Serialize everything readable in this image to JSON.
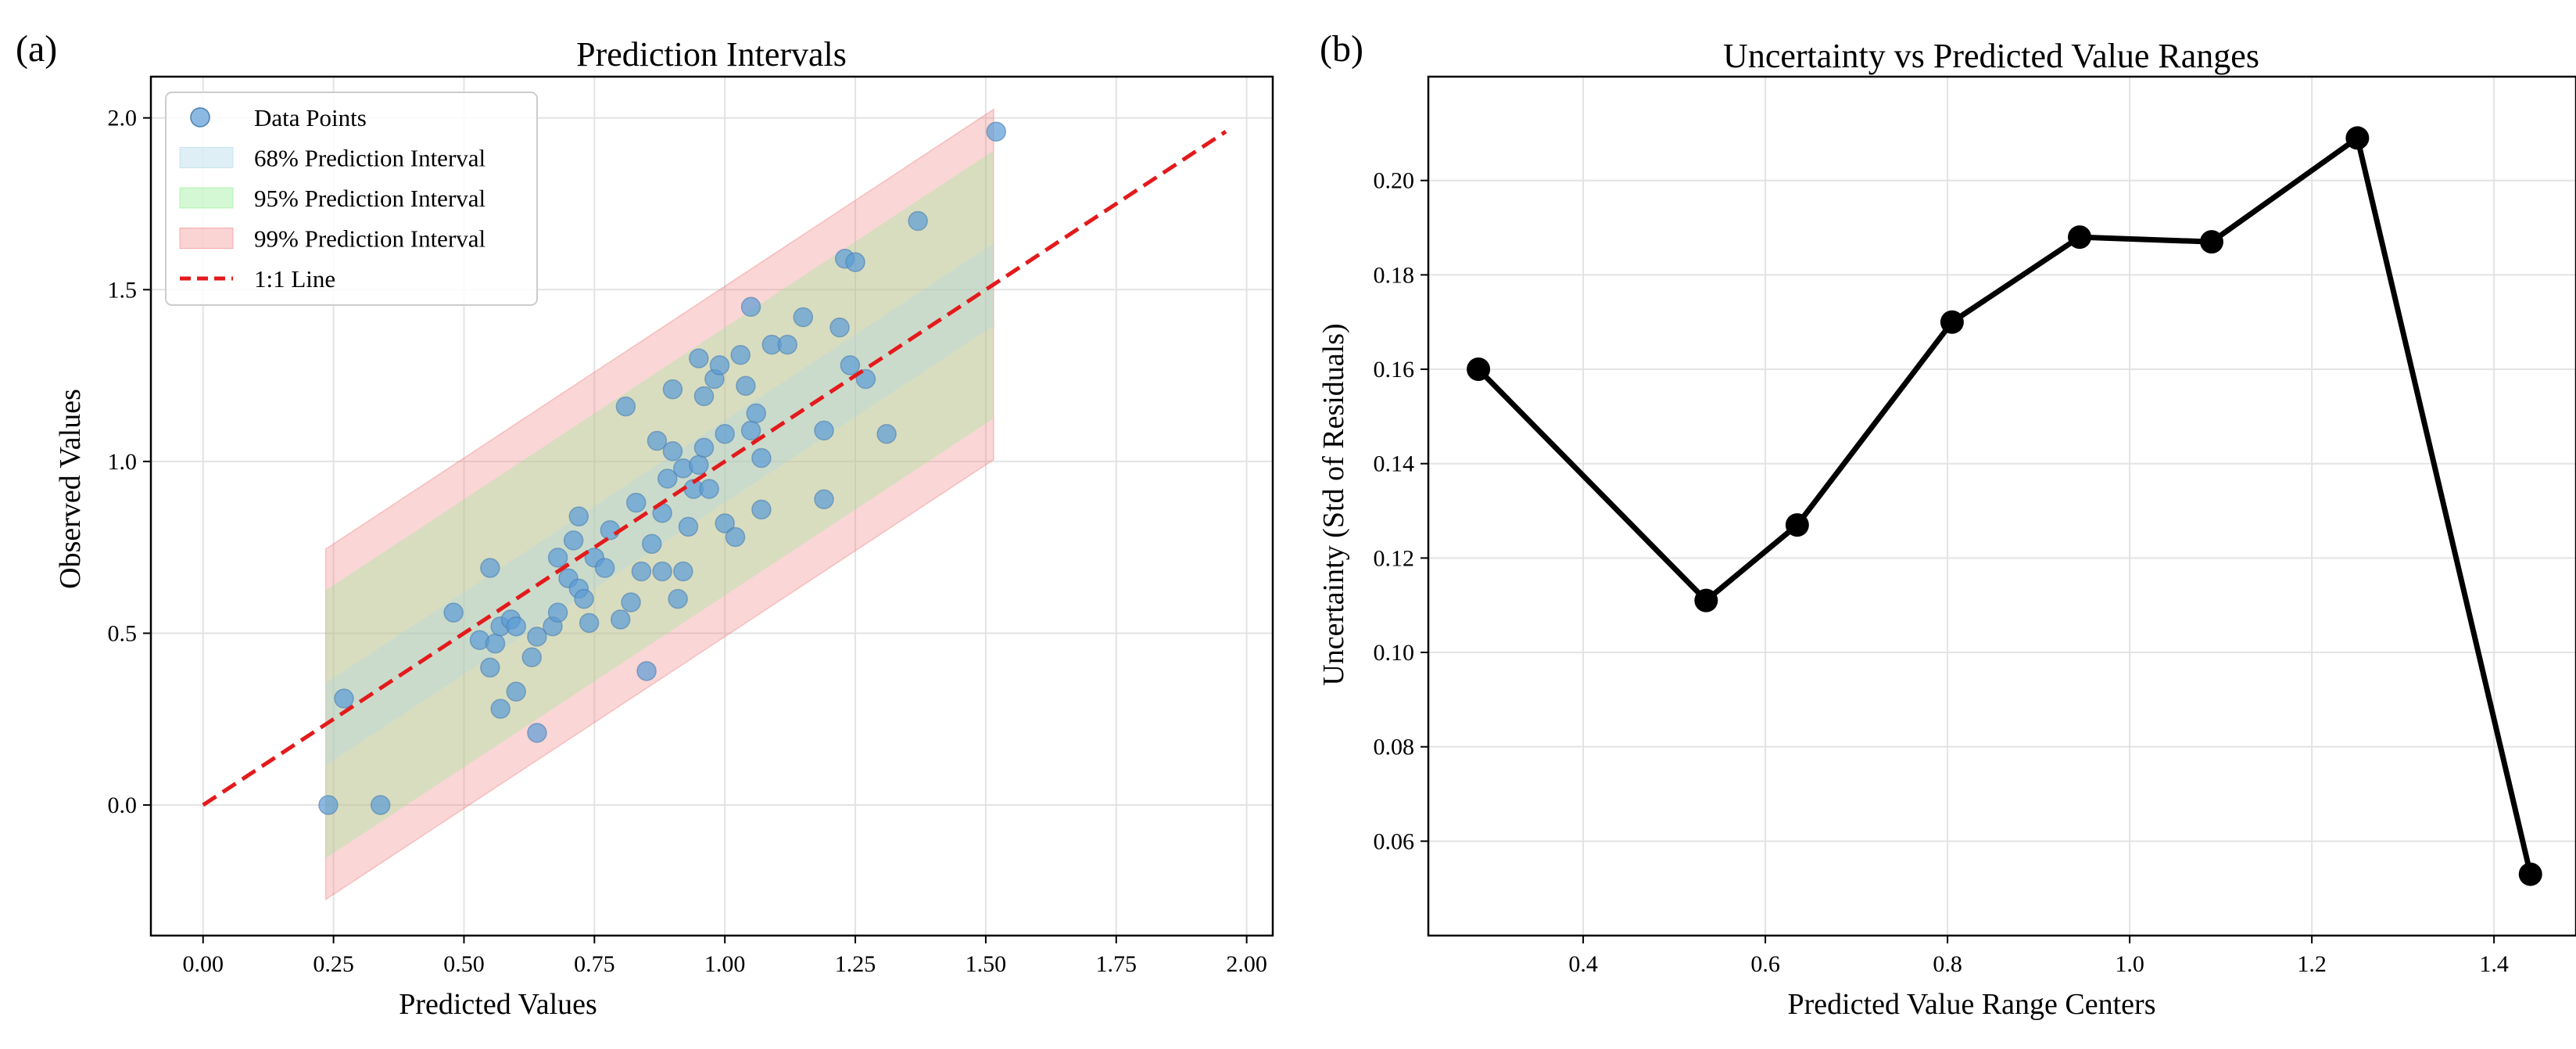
{
  "chart_data": [
    {
      "type": "scatter",
      "panel_label": "(a)",
      "title": "Prediction Intervals",
      "xlabel": "Predicted Values",
      "ylabel": "Observed Values",
      "xlim": [
        -0.1,
        2.05
      ],
      "ylim": [
        -0.38,
        2.12
      ],
      "xticks": [
        0.0,
        0.25,
        0.5,
        0.75,
        1.0,
        1.25,
        1.5,
        1.75,
        2.0
      ],
      "xtick_labels": [
        "0.00",
        "0.25",
        "0.50",
        "0.75",
        "1.00",
        "1.25",
        "1.50",
        "1.75",
        "2.00"
      ],
      "yticks": [
        0.0,
        0.5,
        1.0,
        1.5,
        2.0
      ],
      "ytick_labels": [
        "0.0",
        "0.5",
        "1.0",
        "1.5",
        "2.0"
      ],
      "grid": true,
      "legend_position": "top-left",
      "legend": [
        "Data Points",
        "68% Prediction Interval",
        "95% Prediction Interval",
        "99% Prediction Interval",
        "1:1 Line"
      ],
      "colors": {
        "points": "#5b9bd5",
        "interval_68": "#add8e6",
        "interval_95": "#90ee90",
        "interval_99": "#f08080",
        "line_1to1": "#e31a1c"
      },
      "intervals": {
        "x_range": [
          0.235,
          1.515
        ],
        "half_width_68": 0.12,
        "half_width_95": 0.39,
        "half_width_99": 0.51
      },
      "line_1to1": {
        "x": [
          0.0,
          1.96
        ],
        "y": [
          0.0,
          1.96
        ]
      },
      "points": [
        {
          "x": 0.24,
          "y": 0.0
        },
        {
          "x": 0.27,
          "y": 0.31
        },
        {
          "x": 0.34,
          "y": 0.0
        },
        {
          "x": 0.48,
          "y": 0.56
        },
        {
          "x": 0.53,
          "y": 0.48
        },
        {
          "x": 0.55,
          "y": 0.69
        },
        {
          "x": 0.55,
          "y": 0.4
        },
        {
          "x": 0.56,
          "y": 0.47
        },
        {
          "x": 0.57,
          "y": 0.52
        },
        {
          "x": 0.57,
          "y": 0.28
        },
        {
          "x": 0.59,
          "y": 0.54
        },
        {
          "x": 0.6,
          "y": 0.52
        },
        {
          "x": 0.6,
          "y": 0.33
        },
        {
          "x": 0.63,
          "y": 0.43
        },
        {
          "x": 0.64,
          "y": 0.49
        },
        {
          "x": 0.64,
          "y": 0.21
        },
        {
          "x": 0.67,
          "y": 0.52
        },
        {
          "x": 0.68,
          "y": 0.56
        },
        {
          "x": 0.68,
          "y": 0.72
        },
        {
          "x": 0.7,
          "y": 0.66
        },
        {
          "x": 0.71,
          "y": 0.77
        },
        {
          "x": 0.72,
          "y": 0.63
        },
        {
          "x": 0.72,
          "y": 0.84
        },
        {
          "x": 0.73,
          "y": 0.6
        },
        {
          "x": 0.74,
          "y": 0.53
        },
        {
          "x": 0.75,
          "y": 0.72
        },
        {
          "x": 0.77,
          "y": 0.69
        },
        {
          "x": 0.78,
          "y": 0.8
        },
        {
          "x": 0.8,
          "y": 0.54
        },
        {
          "x": 0.81,
          "y": 1.16
        },
        {
          "x": 0.82,
          "y": 0.59
        },
        {
          "x": 0.83,
          "y": 0.88
        },
        {
          "x": 0.84,
          "y": 0.68
        },
        {
          "x": 0.85,
          "y": 0.39
        },
        {
          "x": 0.86,
          "y": 0.76
        },
        {
          "x": 0.87,
          "y": 1.06
        },
        {
          "x": 0.88,
          "y": 0.68
        },
        {
          "x": 0.88,
          "y": 0.85
        },
        {
          "x": 0.89,
          "y": 0.95
        },
        {
          "x": 0.9,
          "y": 1.03
        },
        {
          "x": 0.9,
          "y": 1.21
        },
        {
          "x": 0.91,
          "y": 0.6
        },
        {
          "x": 0.92,
          "y": 0.68
        },
        {
          "x": 0.92,
          "y": 0.98
        },
        {
          "x": 0.93,
          "y": 0.81
        },
        {
          "x": 0.94,
          "y": 0.92
        },
        {
          "x": 0.95,
          "y": 1.3
        },
        {
          "x": 0.95,
          "y": 0.99
        },
        {
          "x": 0.96,
          "y": 1.04
        },
        {
          "x": 0.96,
          "y": 1.19
        },
        {
          "x": 0.97,
          "y": 0.92
        },
        {
          "x": 0.98,
          "y": 1.24
        },
        {
          "x": 0.99,
          "y": 1.28
        },
        {
          "x": 1.0,
          "y": 0.82
        },
        {
          "x": 1.0,
          "y": 1.08
        },
        {
          "x": 1.02,
          "y": 0.78
        },
        {
          "x": 1.03,
          "y": 1.31
        },
        {
          "x": 1.04,
          "y": 1.22
        },
        {
          "x": 1.05,
          "y": 1.45
        },
        {
          "x": 1.05,
          "y": 1.09
        },
        {
          "x": 1.06,
          "y": 1.14
        },
        {
          "x": 1.07,
          "y": 1.01
        },
        {
          "x": 1.07,
          "y": 0.86
        },
        {
          "x": 1.09,
          "y": 1.34
        },
        {
          "x": 1.12,
          "y": 1.34
        },
        {
          "x": 1.15,
          "y": 1.42
        },
        {
          "x": 1.19,
          "y": 0.89
        },
        {
          "x": 1.19,
          "y": 1.09
        },
        {
          "x": 1.22,
          "y": 1.39
        },
        {
          "x": 1.23,
          "y": 1.59
        },
        {
          "x": 1.24,
          "y": 1.28
        },
        {
          "x": 1.25,
          "y": 1.58
        },
        {
          "x": 1.27,
          "y": 1.24
        },
        {
          "x": 1.31,
          "y": 1.08
        },
        {
          "x": 1.37,
          "y": 1.7
        },
        {
          "x": 1.52,
          "y": 1.96
        }
      ]
    },
    {
      "type": "line",
      "panel_label": "(b)",
      "title": "Uncertainty vs Predicted Value Ranges",
      "xlabel": "Predicted Value Range Centers",
      "ylabel": "Uncertainty (Std of Residuals)",
      "xlim": [
        0.23,
        1.49
      ],
      "ylim": [
        0.04,
        0.222
      ],
      "xticks": [
        0.4,
        0.6,
        0.8,
        1.0,
        1.2,
        1.4
      ],
      "xtick_labels": [
        "0.4",
        "0.6",
        "0.8",
        "1.0",
        "1.2",
        "1.4"
      ],
      "yticks": [
        0.06,
        0.08,
        0.1,
        0.12,
        0.14,
        0.16,
        0.18,
        0.2
      ],
      "ytick_labels": [
        "0.06",
        "0.08",
        "0.10",
        "0.12",
        "0.14",
        "0.16",
        "0.18",
        "0.20"
      ],
      "grid": true,
      "color": "#000000",
      "x": [
        0.285,
        0.535,
        0.635,
        0.805,
        0.945,
        1.09,
        1.25,
        1.44
      ],
      "y": [
        0.16,
        0.111,
        0.127,
        0.17,
        0.188,
        0.187,
        0.209,
        0.053
      ]
    }
  ]
}
